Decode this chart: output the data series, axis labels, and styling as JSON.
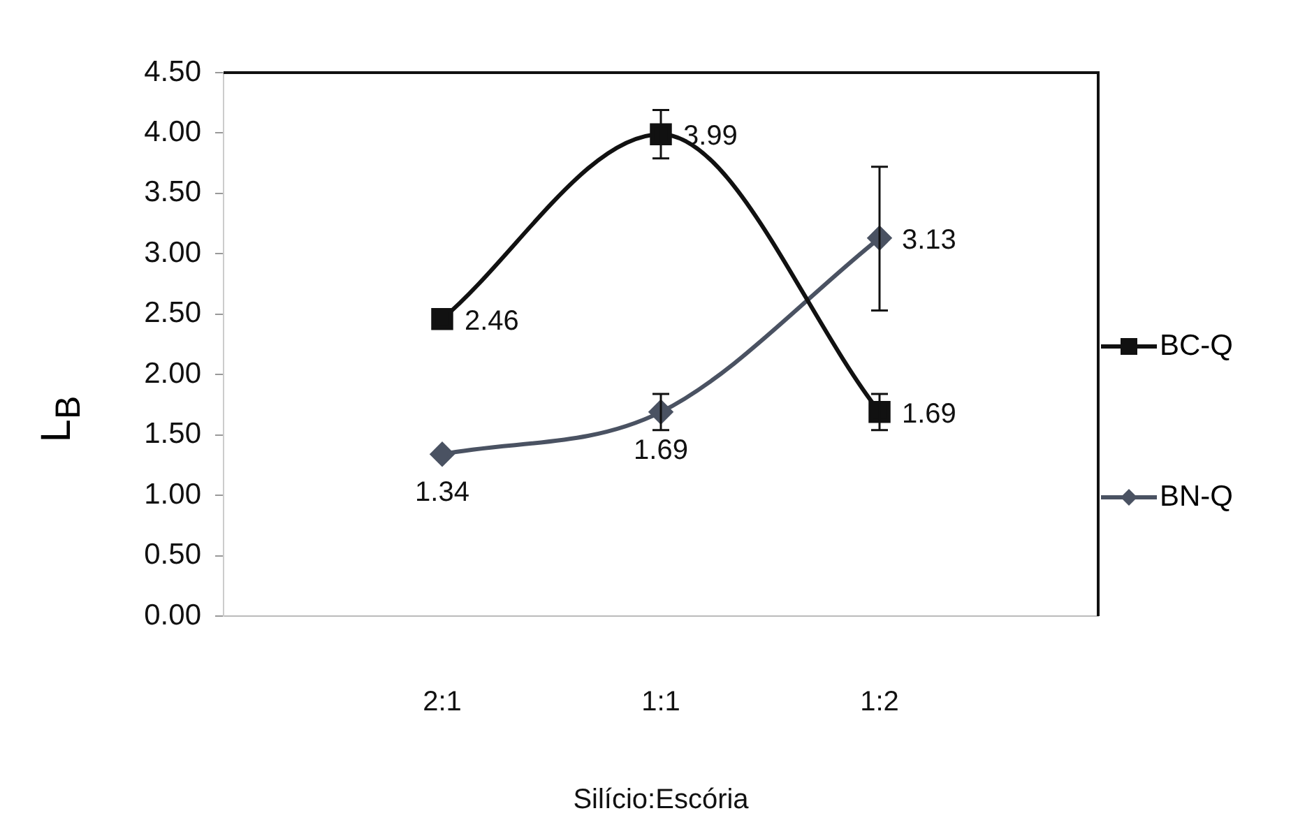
{
  "chart_data": {
    "type": "line",
    "xlabel": "Silício:Escória",
    "ylabel": "L$_{B}$",
    "categories": [
      "2:1",
      "1:1",
      "1:2"
    ],
    "ylim": [
      0,
      4.5
    ],
    "yticks": [
      {
        "value": 0,
        "label": "0.00"
      },
      {
        "value": 0.5,
        "label": "0.50"
      },
      {
        "value": 1,
        "label": "1.00"
      },
      {
        "value": 1.5,
        "label": "1.50"
      },
      {
        "value": 2,
        "label": "2.00"
      },
      {
        "value": 2.5,
        "label": "2.50"
      },
      {
        "value": 3,
        "label": "3.00"
      },
      {
        "value": 3.5,
        "label": "3.50"
      },
      {
        "value": 4,
        "label": "4.00"
      },
      {
        "value": 4.5,
        "label": "4.50"
      }
    ],
    "series": [
      {
        "name": "BC-Q",
        "color": "#111111",
        "marker": "square",
        "values": [
          2.46,
          3.99,
          1.69
        ],
        "errors": [
          null,
          0.2,
          0.15
        ]
      },
      {
        "name": "BN-Q",
        "color": "#4a5262",
        "marker": "diamond",
        "values": [
          1.34,
          1.69,
          3.13
        ],
        "errors": [
          null,
          0.15,
          [
            2.53,
            3.72
          ]
        ]
      }
    ],
    "data_labels": true,
    "legend": "right",
    "line_style": "solid"
  }
}
